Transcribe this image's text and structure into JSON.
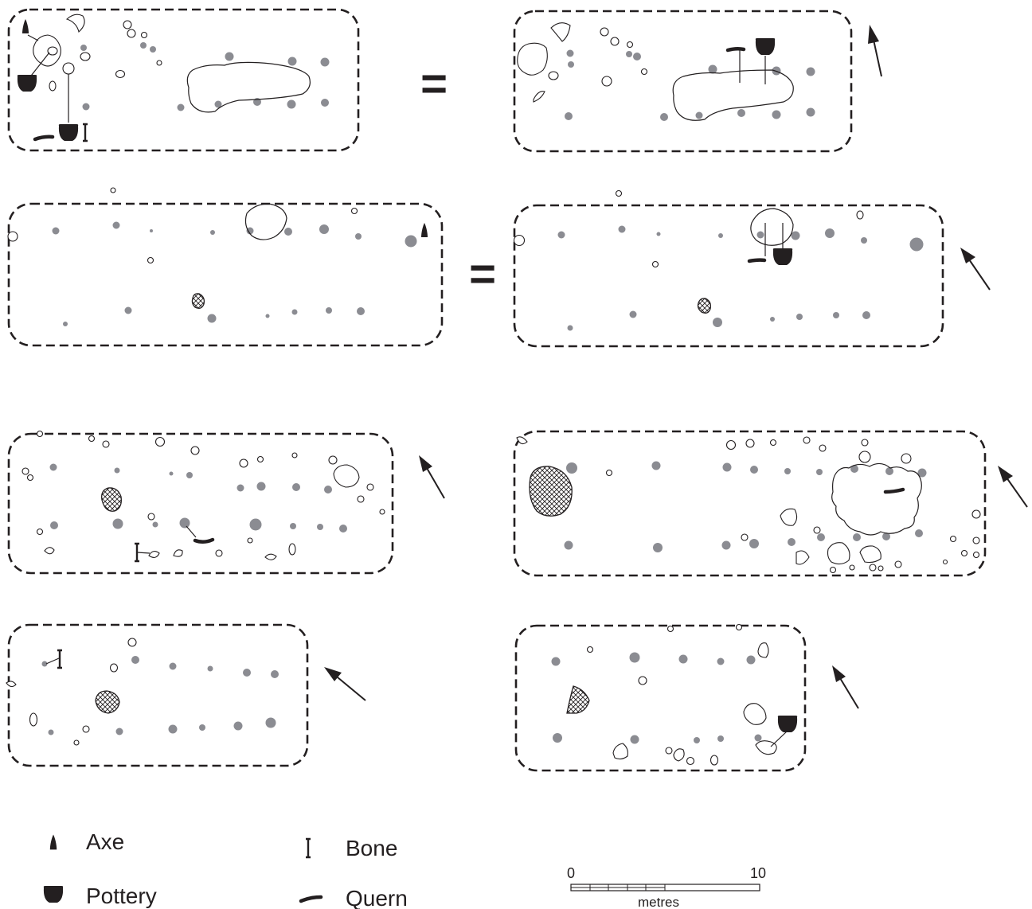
{
  "equals_sign": "=",
  "legend": {
    "axe": {
      "label": "Axe",
      "icon": "axe-icon"
    },
    "pottery": {
      "label": "Pottery",
      "icon": "pottery-icon"
    },
    "bone": {
      "label": "Bone",
      "icon": "bone-icon"
    },
    "quern": {
      "label": "Quern",
      "icon": "quern-icon"
    }
  },
  "scale_bar": {
    "start": "0",
    "end": "10",
    "unit": "metres"
  },
  "colors": {
    "ink": "#231f20",
    "posthole": "#8b8c92"
  }
}
